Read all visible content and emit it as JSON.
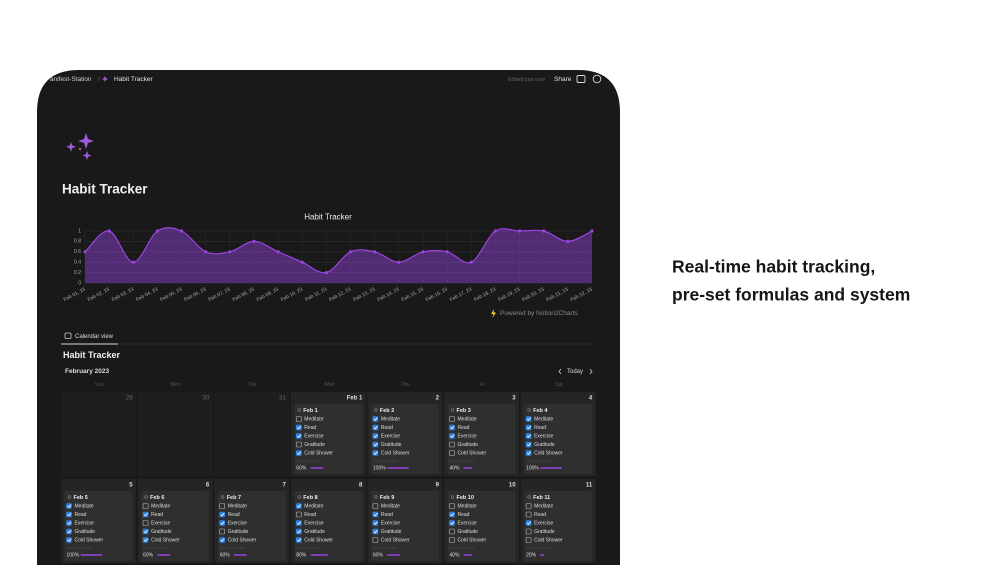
{
  "header": {
    "breadcrumb": [
      "anifest-Station",
      "Habit Tracker"
    ],
    "edited": "Edited just now",
    "share": "Share"
  },
  "page": {
    "title": "Habit Tracker"
  },
  "chart_data": {
    "type": "area",
    "title": "Habit Tracker",
    "categories": [
      "Feb 01, 23",
      "Feb 02, 23",
      "Feb 03, 23",
      "Feb 04, 23",
      "Feb 05, 23",
      "Feb 06, 23",
      "Feb 07, 23",
      "Feb 08, 23",
      "Feb 09, 23",
      "Feb 10, 23",
      "Feb 11, 23",
      "Feb 12, 23",
      "Feb 13, 23",
      "Feb 14, 23",
      "Feb 15, 23",
      "Feb 16, 23",
      "Feb 17, 23",
      "Feb 18, 23",
      "Feb 19, 23",
      "Feb 20, 23",
      "Feb 21, 23",
      "Feb 22, 23"
    ],
    "values": [
      0.6,
      1,
      0.4,
      1,
      1,
      0.6,
      0.6,
      0.8,
      0.6,
      0.4,
      0.2,
      0.6,
      0.6,
      0.4,
      0.6,
      0.6,
      0.4,
      1,
      1,
      1,
      0.8,
      1
    ],
    "color": "#9a44e0",
    "ylim": [
      0,
      1
    ],
    "yticks": [
      0,
      0.2,
      0.4,
      0.6,
      0.8,
      1
    ],
    "grid": true,
    "credit": "Powered by Notion2Charts"
  },
  "calendar": {
    "tab": "Calendar view",
    "title": "Habit Tracker",
    "month": "February 2023",
    "today": "Today",
    "weekdays": [
      "Sun",
      "Mon",
      "Tue",
      "Wed",
      "Thu",
      "Fri",
      "Sat"
    ],
    "days": [
      {
        "label": "29"
      },
      {
        "label": "30"
      },
      {
        "label": "31"
      },
      {
        "label": "Feb 1",
        "entry": {
          "date": "Feb 1",
          "progress": 60,
          "progress_label": "60%",
          "items": [
            {
              "name": "Meditate",
              "checked": false
            },
            {
              "name": "Read",
              "checked": true
            },
            {
              "name": "Exercise",
              "checked": true
            },
            {
              "name": "Gratitude",
              "checked": false
            },
            {
              "name": "Cold Shower",
              "checked": true
            }
          ]
        }
      },
      {
        "label": "2",
        "entry": {
          "date": "Feb 2",
          "progress": 100,
          "progress_label": "100%",
          "items": [
            {
              "name": "Meditate",
              "checked": true
            },
            {
              "name": "Read",
              "checked": true
            },
            {
              "name": "Exercise",
              "checked": true
            },
            {
              "name": "Gratitude",
              "checked": true
            },
            {
              "name": "Cold Shower",
              "checked": true
            }
          ]
        }
      },
      {
        "label": "3",
        "entry": {
          "date": "Feb 3",
          "progress": 40,
          "progress_label": "40%",
          "items": [
            {
              "name": "Meditate",
              "checked": false
            },
            {
              "name": "Read",
              "checked": true
            },
            {
              "name": "Exercise",
              "checked": true
            },
            {
              "name": "Gratitude",
              "checked": false
            },
            {
              "name": "Cold Shower",
              "checked": false
            }
          ]
        }
      },
      {
        "label": "4",
        "entry": {
          "date": "Feb 4",
          "progress": 100,
          "progress_label": "100%",
          "items": [
            {
              "name": "Meditate",
              "checked": true
            },
            {
              "name": "Read",
              "checked": true
            },
            {
              "name": "Exercise",
              "checked": true
            },
            {
              "name": "Gratitude",
              "checked": true
            },
            {
              "name": "Cold Shower",
              "checked": true
            }
          ]
        }
      },
      {
        "label": "5",
        "entry": {
          "date": "Feb 5",
          "progress": 100,
          "progress_label": "100%",
          "items": [
            {
              "name": "Meditate",
              "checked": true
            },
            {
              "name": "Read",
              "checked": true
            },
            {
              "name": "Exercise",
              "checked": true
            },
            {
              "name": "Gratitude",
              "checked": true
            },
            {
              "name": "Cold Shower",
              "checked": true
            }
          ]
        }
      },
      {
        "label": "6",
        "entry": {
          "date": "Feb 6",
          "progress": 60,
          "progress_label": "60%",
          "items": [
            {
              "name": "Meditate",
              "checked": false
            },
            {
              "name": "Read",
              "checked": true
            },
            {
              "name": "Exercise",
              "checked": false
            },
            {
              "name": "Gratitude",
              "checked": true
            },
            {
              "name": "Cold Shower",
              "checked": true
            }
          ]
        }
      },
      {
        "label": "7",
        "entry": {
          "date": "Feb 7",
          "progress": 60,
          "progress_label": "60%",
          "items": [
            {
              "name": "Meditate",
              "checked": false
            },
            {
              "name": "Read",
              "checked": true
            },
            {
              "name": "Exercise",
              "checked": true
            },
            {
              "name": "Gratitude",
              "checked": false
            },
            {
              "name": "Cold Shower",
              "checked": true
            }
          ]
        }
      },
      {
        "label": "8",
        "entry": {
          "date": "Feb 8",
          "progress": 80,
          "progress_label": "80%",
          "items": [
            {
              "name": "Meditate",
              "checked": true
            },
            {
              "name": "Read",
              "checked": false
            },
            {
              "name": "Exercise",
              "checked": true
            },
            {
              "name": "Gratitude",
              "checked": true
            },
            {
              "name": "Cold Shower",
              "checked": true
            }
          ]
        }
      },
      {
        "label": "9",
        "entry": {
          "date": "Feb 9",
          "progress": 60,
          "progress_label": "60%",
          "items": [
            {
              "name": "Meditate",
              "checked": false
            },
            {
              "name": "Read",
              "checked": true
            },
            {
              "name": "Exercise",
              "checked": true
            },
            {
              "name": "Gratitude",
              "checked": true
            },
            {
              "name": "Cold Shower",
              "checked": false
            }
          ]
        }
      },
      {
        "label": "10",
        "entry": {
          "date": "Feb 10",
          "progress": 40,
          "progress_label": "40%",
          "items": [
            {
              "name": "Meditate",
              "checked": false
            },
            {
              "name": "Read",
              "checked": true
            },
            {
              "name": "Exercise",
              "checked": true
            },
            {
              "name": "Gratitude",
              "checked": false
            },
            {
              "name": "Cold Shower",
              "checked": false
            }
          ]
        }
      },
      {
        "label": "11",
        "entry": {
          "date": "Feb 11",
          "progress": 20,
          "progress_label": "20%",
          "items": [
            {
              "name": "Meditate",
              "checked": false
            },
            {
              "name": "Read",
              "checked": false
            },
            {
              "name": "Exercise",
              "checked": true
            },
            {
              "name": "Gratitude",
              "checked": false
            },
            {
              "name": "Cold Shower",
              "checked": false
            }
          ]
        }
      }
    ]
  },
  "tagline": [
    "Real-time habit tracking,",
    "pre-set formulas and system"
  ]
}
